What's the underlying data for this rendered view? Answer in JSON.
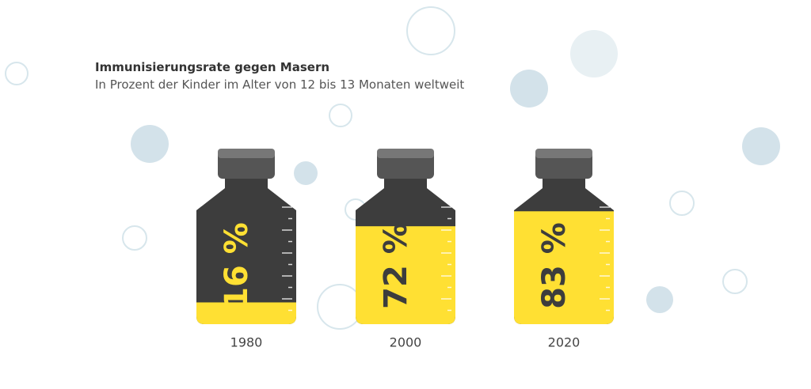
{
  "chart_data": {
    "type": "bottle",
    "title": "Immunisierungsrate gegen Masern",
    "subtitle": "In Prozent der Kinder im Alter von 12 bis 13 Monaten weltweit",
    "categories": [
      "1980",
      "2000",
      "2020"
    ],
    "values": [
      16,
      72,
      83
    ],
    "value_labels": [
      "16 %",
      "72 %",
      "83 %"
    ],
    "ylim": [
      0,
      100
    ],
    "color": "#ffe033"
  }
}
